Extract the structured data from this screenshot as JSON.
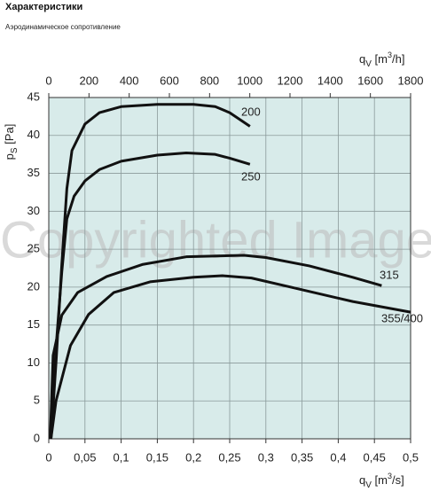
{
  "header": {
    "title": "Характеристики",
    "subtitle": "Аэродинамическое сопротивление"
  },
  "chart_data": {
    "type": "line",
    "watermark": "Copyrighted Image",
    "xlabel": [
      "q",
      "V",
      " [m",
      "3",
      "/s]"
    ],
    "x2label": [
      "q",
      "V",
      " [m",
      "3",
      "/h]"
    ],
    "ylabel": [
      "p",
      "S",
      " [Pa]"
    ],
    "xlim": [
      0,
      0.5
    ],
    "xticks": [
      0,
      {
        "value": 0.05,
        "label": "0,05"
      },
      {
        "value": 0.1,
        "label": "0,1"
      },
      {
        "value": 0.15,
        "label": "0,15"
      },
      {
        "value": 0.2,
        "label": "0,2"
      },
      {
        "value": 0.25,
        "label": "0,25"
      },
      {
        "value": 0.3,
        "label": "0,3"
      },
      {
        "value": 0.35,
        "label": "0,35"
      },
      {
        "value": 0.4,
        "label": "0,4"
      },
      {
        "value": 0.45,
        "label": "0,45"
      },
      {
        "value": 0.5,
        "label": "0,5"
      }
    ],
    "x2lim": [
      0,
      1800
    ],
    "x2ticks": [
      0,
      200,
      400,
      600,
      800,
      1000,
      1200,
      1400,
      1600,
      1800
    ],
    "ylim": [
      0,
      45
    ],
    "yticks": [
      0,
      5,
      10,
      15,
      20,
      25,
      30,
      35,
      40,
      45
    ],
    "grid": true,
    "background": "#d8ebea",
    "series": [
      {
        "name": "200",
        "color": "#111111",
        "x": [
          0.003,
          0.01,
          0.018,
          0.025,
          0.032,
          0.05,
          0.07,
          0.1,
          0.15,
          0.2,
          0.23,
          0.25,
          0.278
        ],
        "values": [
          0,
          10,
          23,
          33,
          38,
          41.5,
          43,
          43.8,
          44.1,
          44.1,
          43.8,
          43,
          41.2
        ]
      },
      {
        "name": "250",
        "color": "#111111",
        "x": [
          0.003,
          0.01,
          0.018,
          0.025,
          0.035,
          0.05,
          0.07,
          0.1,
          0.15,
          0.19,
          0.23,
          0.25,
          0.278
        ],
        "values": [
          0,
          12,
          22,
          29,
          32,
          34,
          35.5,
          36.6,
          37.4,
          37.7,
          37.5,
          37,
          36.2
        ]
      },
      {
        "name": "315",
        "color": "#111111",
        "x": [
          0.002,
          0.006,
          0.018,
          0.04,
          0.08,
          0.13,
          0.19,
          0.27,
          0.3,
          0.36,
          0.42,
          0.46
        ],
        "values": [
          0,
          11,
          16.3,
          19.3,
          21.4,
          23,
          24,
          24.2,
          23.9,
          22.8,
          21.3,
          20.2
        ]
      },
      {
        "name": "355/400",
        "color": "#111111",
        "x": [
          0.003,
          0.01,
          0.03,
          0.055,
          0.09,
          0.14,
          0.2,
          0.24,
          0.28,
          0.33,
          0.42,
          0.5
        ],
        "values": [
          0,
          5,
          12.3,
          16.4,
          19.3,
          20.7,
          21.3,
          21.5,
          21.2,
          20.1,
          18.1,
          16.7
        ]
      }
    ]
  }
}
